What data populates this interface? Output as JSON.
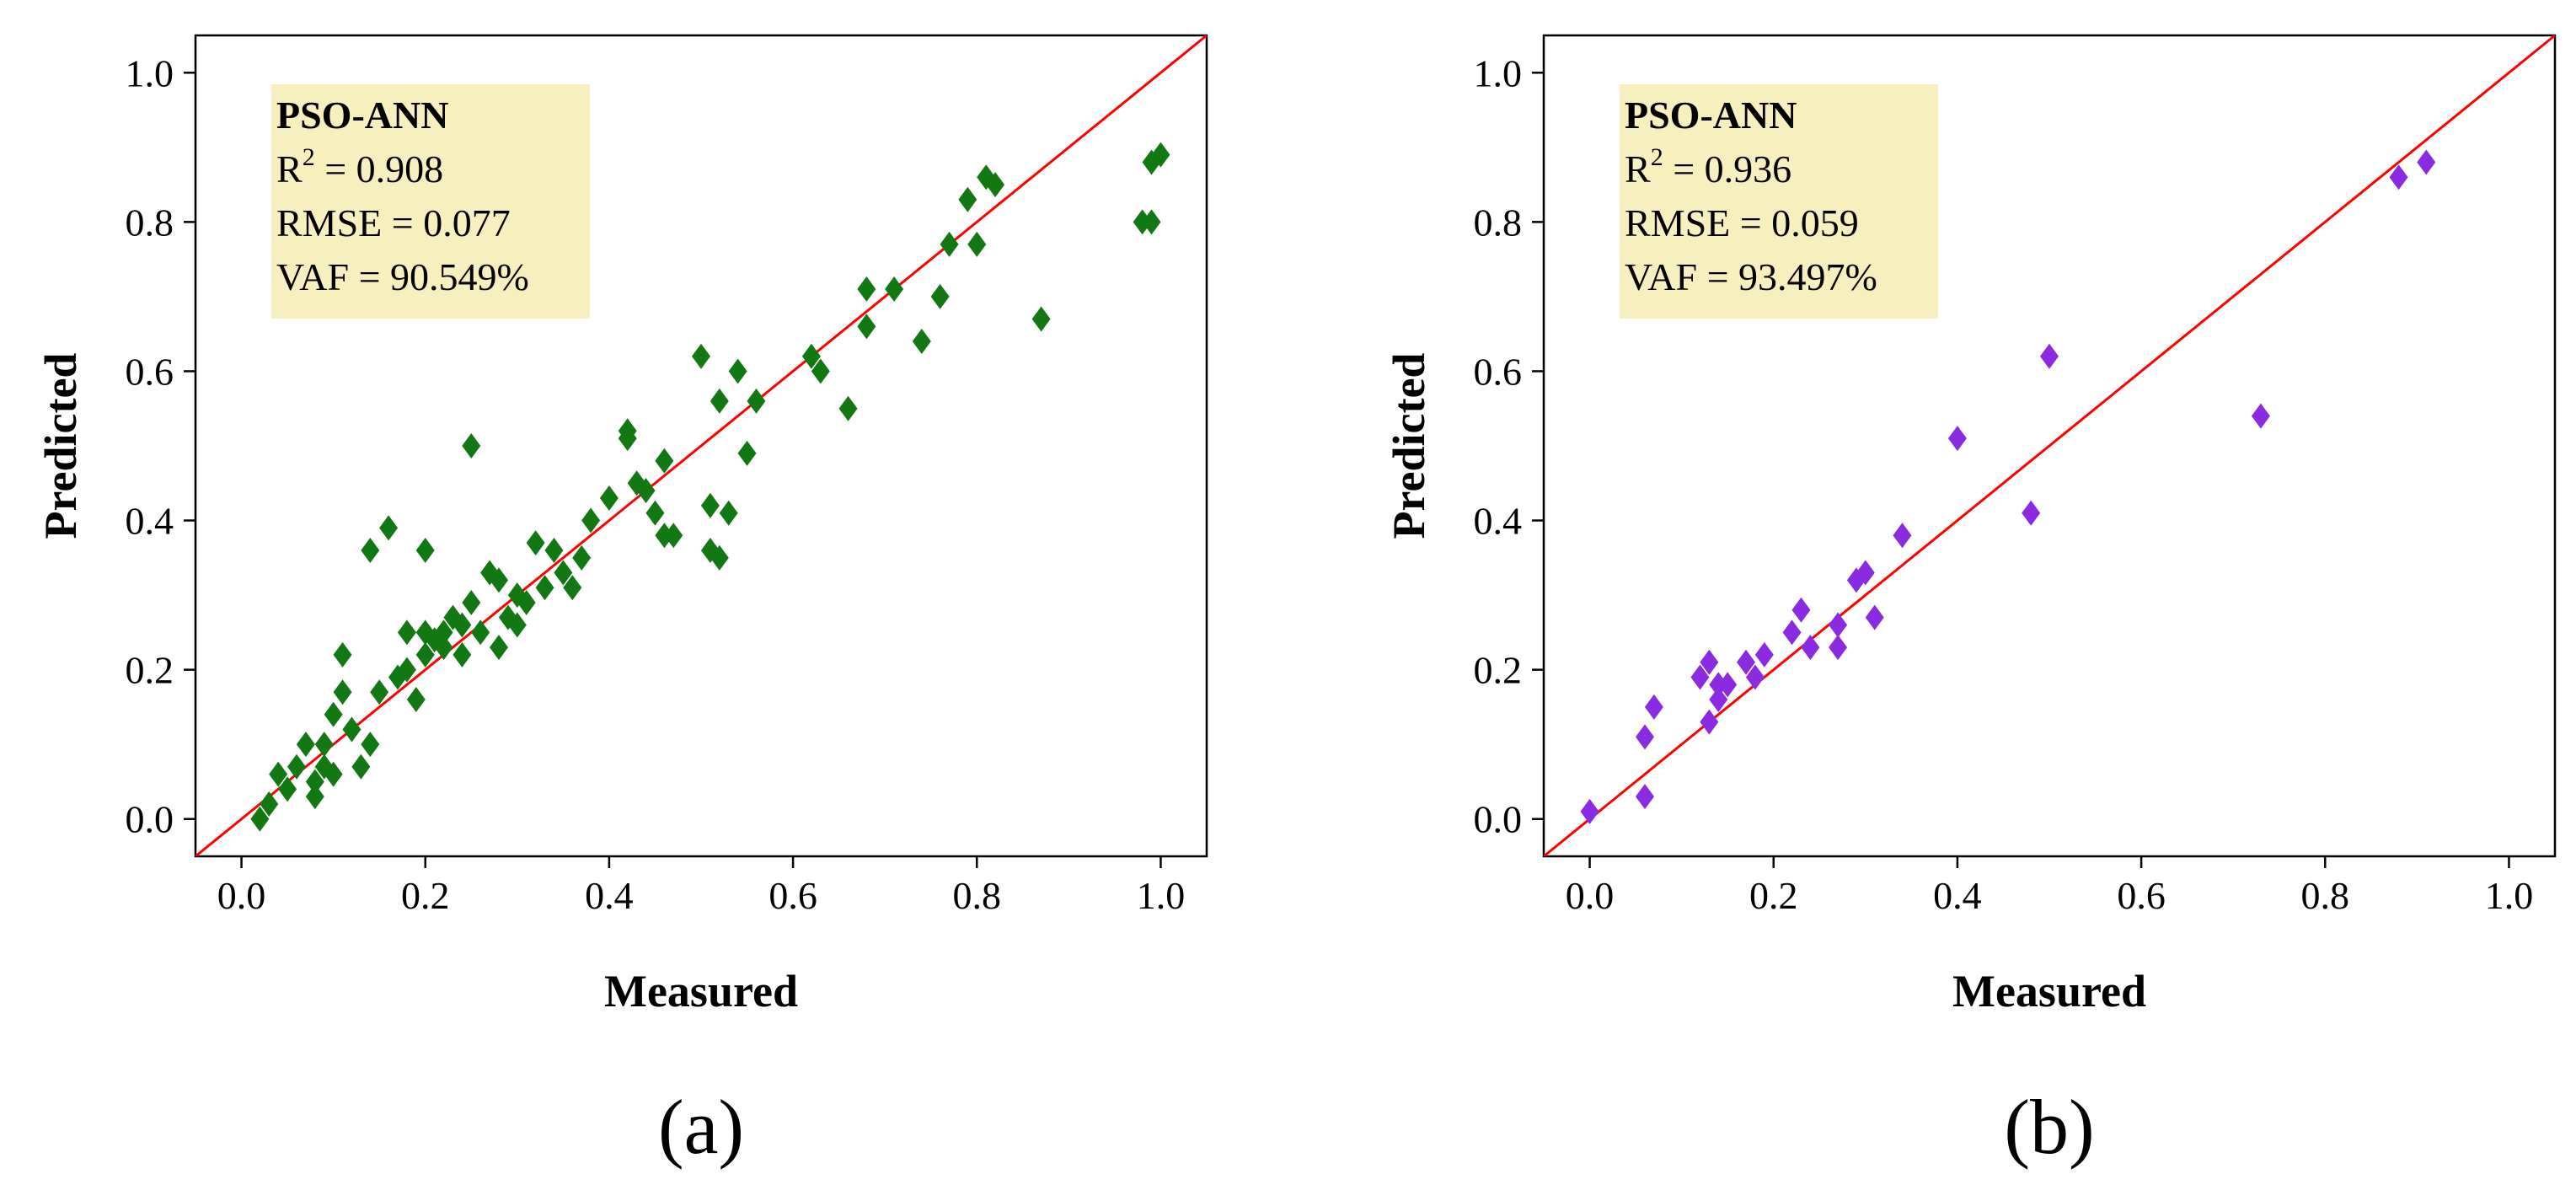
{
  "figure": {
    "background": "#ffffff",
    "annotation_fill": "#f7efbe",
    "reference_line_color": "#ff0000"
  },
  "chart_data": [
    {
      "type": "scatter",
      "panel_label": "(a)",
      "xlabel": "Measured",
      "ylabel": "Predicted",
      "xlim": [
        -0.05,
        1.05
      ],
      "ylim": [
        -0.05,
        1.05
      ],
      "xticks": [
        "0.0",
        "0.2",
        "0.4",
        "0.6",
        "0.8",
        "1.0"
      ],
      "yticks": [
        "0.0",
        "0.2",
        "0.4",
        "0.6",
        "0.8",
        "1.0"
      ],
      "marker": "diamond",
      "marker_color": "#127812",
      "reference_line": {
        "type": "y=x",
        "color": "#ff0000"
      },
      "grid": false,
      "annotation": {
        "title": "PSO-ANN",
        "r2_prefix": "R",
        "r2_sup": "2",
        "r2_suffix": " = 0.908",
        "rmse": "RMSE = 0.077",
        "vaf": "VAF = 90.549%"
      },
      "series": [
        {
          "points": [
            [
              0.02,
              0.0
            ],
            [
              0.03,
              0.02
            ],
            [
              0.04,
              0.06
            ],
            [
              0.05,
              0.04
            ],
            [
              0.06,
              0.07
            ],
            [
              0.07,
              0.1
            ],
            [
              0.08,
              0.03
            ],
            [
              0.08,
              0.05
            ],
            [
              0.09,
              0.07
            ],
            [
              0.09,
              0.1
            ],
            [
              0.1,
              0.06
            ],
            [
              0.1,
              0.14
            ],
            [
              0.11,
              0.17
            ],
            [
              0.11,
              0.22
            ],
            [
              0.12,
              0.12
            ],
            [
              0.13,
              0.07
            ],
            [
              0.14,
              0.1
            ],
            [
              0.14,
              0.36
            ],
            [
              0.15,
              0.17
            ],
            [
              0.16,
              0.39
            ],
            [
              0.17,
              0.19
            ],
            [
              0.18,
              0.25
            ],
            [
              0.18,
              0.2
            ],
            [
              0.19,
              0.16
            ],
            [
              0.2,
              0.22
            ],
            [
              0.2,
              0.25
            ],
            [
              0.2,
              0.36
            ],
            [
              0.21,
              0.24
            ],
            [
              0.22,
              0.25
            ],
            [
              0.22,
              0.23
            ],
            [
              0.23,
              0.27
            ],
            [
              0.24,
              0.22
            ],
            [
              0.24,
              0.26
            ],
            [
              0.25,
              0.29
            ],
            [
              0.25,
              0.5
            ],
            [
              0.26,
              0.25
            ],
            [
              0.27,
              0.33
            ],
            [
              0.28,
              0.23
            ],
            [
              0.28,
              0.32
            ],
            [
              0.29,
              0.27
            ],
            [
              0.3,
              0.3
            ],
            [
              0.3,
              0.26
            ],
            [
              0.31,
              0.29
            ],
            [
              0.32,
              0.37
            ],
            [
              0.33,
              0.31
            ],
            [
              0.34,
              0.36
            ],
            [
              0.35,
              0.33
            ],
            [
              0.36,
              0.31
            ],
            [
              0.37,
              0.35
            ],
            [
              0.38,
              0.4
            ],
            [
              0.4,
              0.43
            ],
            [
              0.42,
              0.51
            ],
            [
              0.42,
              0.52
            ],
            [
              0.43,
              0.45
            ],
            [
              0.44,
              0.44
            ],
            [
              0.45,
              0.41
            ],
            [
              0.46,
              0.38
            ],
            [
              0.46,
              0.48
            ],
            [
              0.47,
              0.38
            ],
            [
              0.5,
              0.62
            ],
            [
              0.51,
              0.36
            ],
            [
              0.51,
              0.42
            ],
            [
              0.52,
              0.35
            ],
            [
              0.52,
              0.56
            ],
            [
              0.53,
              0.41
            ],
            [
              0.54,
              0.6
            ],
            [
              0.55,
              0.49
            ],
            [
              0.56,
              0.56
            ],
            [
              0.62,
              0.62
            ],
            [
              0.63,
              0.6
            ],
            [
              0.66,
              0.55
            ],
            [
              0.68,
              0.66
            ],
            [
              0.68,
              0.71
            ],
            [
              0.71,
              0.71
            ],
            [
              0.74,
              0.64
            ],
            [
              0.76,
              0.7
            ],
            [
              0.77,
              0.77
            ],
            [
              0.79,
              0.83
            ],
            [
              0.8,
              0.77
            ],
            [
              0.81,
              0.86
            ],
            [
              0.82,
              0.85
            ],
            [
              0.87,
              0.67
            ],
            [
              0.98,
              0.8
            ],
            [
              0.99,
              0.8
            ],
            [
              0.99,
              0.88
            ],
            [
              1.0,
              0.89
            ]
          ]
        }
      ]
    },
    {
      "type": "scatter",
      "panel_label": "(b)",
      "xlabel": "Measured",
      "ylabel": "Predicted",
      "xlim": [
        -0.05,
        1.05
      ],
      "ylim": [
        -0.05,
        1.05
      ],
      "xticks": [
        "0.0",
        "0.2",
        "0.4",
        "0.6",
        "0.8",
        "1.0"
      ],
      "yticks": [
        "0.0",
        "0.2",
        "0.4",
        "0.6",
        "0.8",
        "1.0"
      ],
      "marker": "diamond",
      "marker_color": "#8a2be2",
      "reference_line": {
        "type": "y=x",
        "color": "#ff0000"
      },
      "grid": false,
      "annotation": {
        "title": "PSO-ANN",
        "r2_prefix": "R",
        "r2_sup": "2",
        "r2_suffix": " = 0.936",
        "rmse": "RMSE = 0.059",
        "vaf": "VAF = 93.497%"
      },
      "series": [
        {
          "points": [
            [
              0.0,
              0.01
            ],
            [
              0.06,
              0.03
            ],
            [
              0.06,
              0.11
            ],
            [
              0.07,
              0.15
            ],
            [
              0.12,
              0.19
            ],
            [
              0.13,
              0.21
            ],
            [
              0.13,
              0.13
            ],
            [
              0.14,
              0.16
            ],
            [
              0.14,
              0.18
            ],
            [
              0.15,
              0.18
            ],
            [
              0.17,
              0.21
            ],
            [
              0.18,
              0.19
            ],
            [
              0.19,
              0.22
            ],
            [
              0.22,
              0.25
            ],
            [
              0.23,
              0.28
            ],
            [
              0.24,
              0.23
            ],
            [
              0.27,
              0.23
            ],
            [
              0.27,
              0.26
            ],
            [
              0.29,
              0.32
            ],
            [
              0.3,
              0.33
            ],
            [
              0.31,
              0.27
            ],
            [
              0.34,
              0.38
            ],
            [
              0.4,
              0.51
            ],
            [
              0.48,
              0.41
            ],
            [
              0.5,
              0.62
            ],
            [
              0.73,
              0.54
            ],
            [
              0.88,
              0.86
            ],
            [
              0.91,
              0.88
            ]
          ]
        }
      ]
    }
  ]
}
